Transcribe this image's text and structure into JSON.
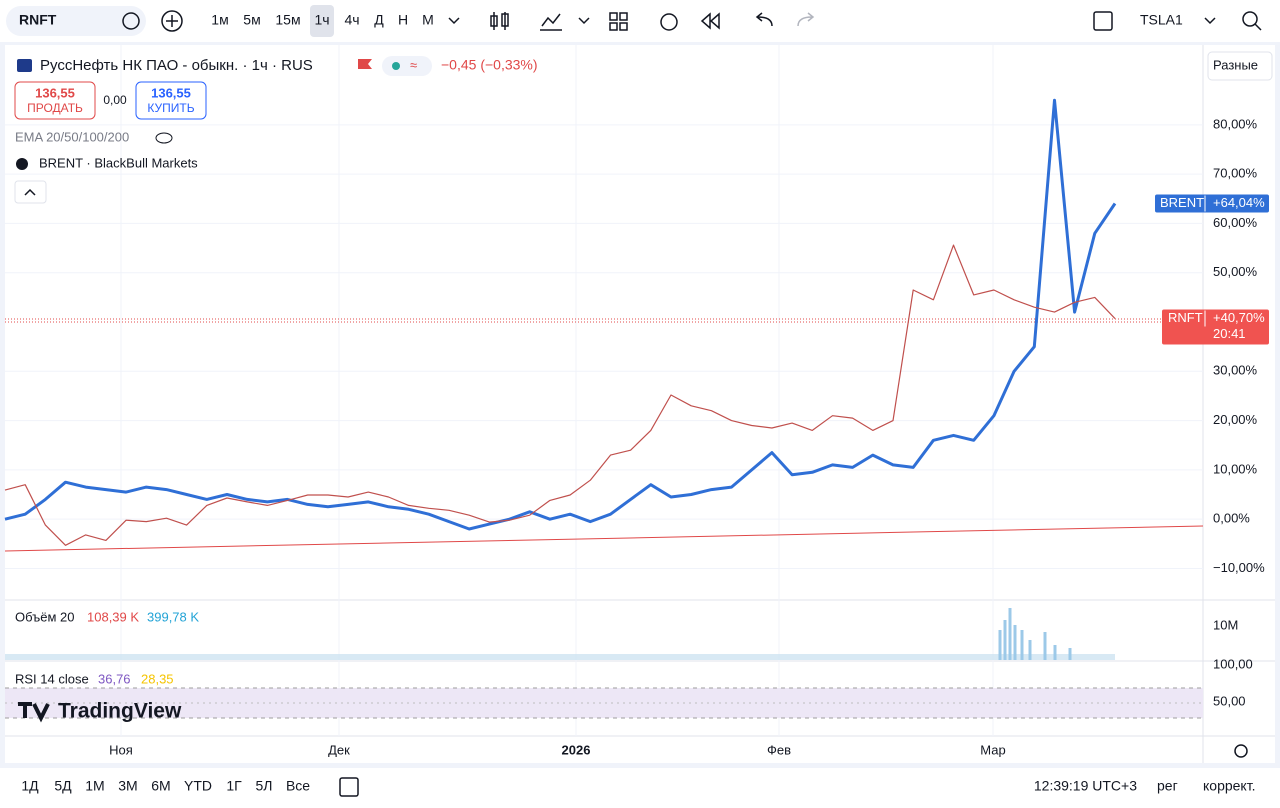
{
  "toolbar": {
    "symbol": "RNFT",
    "intervals": [
      "1м",
      "5м",
      "15м",
      "1ч",
      "4ч",
      "Д",
      "Н",
      "М"
    ],
    "active_interval": "1ч",
    "compare_symbol": "TSLA1"
  },
  "legend": {
    "title": "РуссНефть НК ПАО - обыкн. · 1ч · RUS",
    "change": "−0,45 (−0,33%)",
    "sell_price": "136,55",
    "sell_label": "ПРОДАТЬ",
    "spread": "0,00",
    "buy_price": "136,55",
    "buy_label": "КУПИТЬ",
    "ema": "EMA 20/50/100/200",
    "compare": "BRENT · BlackBull Markets"
  },
  "scale_mode": "Разные",
  "chart_data": {
    "type": "line",
    "series": [
      {
        "name": "BRENT",
        "color": "#2f6fd6",
        "width": 3,
        "last_value_label": "+64,04%",
        "values": [
          0,
          1,
          4,
          7.5,
          6.5,
          6,
          5.5,
          6.5,
          6,
          5,
          4,
          5,
          4,
          3.5,
          4,
          3,
          2.5,
          3,
          3.5,
          2.5,
          2,
          1,
          -0.5,
          -2,
          -1,
          0,
          1.5,
          0,
          1,
          -0.5,
          1,
          4,
          7,
          4.5,
          5,
          6,
          6.5,
          10,
          13.5,
          9,
          9.5,
          11,
          10.5,
          13,
          11,
          10.5,
          16,
          17,
          16,
          21,
          30,
          35,
          85,
          42,
          58,
          64.04
        ]
      },
      {
        "name": "RNFT",
        "color": "#c0504d",
        "width": 1.2,
        "last_value_label": "+40,70%",
        "values": [
          5.9,
          7,
          -1.2,
          -5.3,
          -3.2,
          -4.3,
          -0.2,
          -0.5,
          0.2,
          -1.2,
          2.8,
          4.3,
          3.5,
          2.8,
          3.8,
          4.9,
          4.9,
          4.5,
          5.5,
          4.5,
          2.8,
          2.2,
          1.8,
          0.8,
          -0.6,
          -0.2,
          0.8,
          3.8,
          4.9,
          7.9,
          13,
          14,
          18,
          25.2,
          23,
          22,
          20,
          19,
          18.5,
          19.5,
          18,
          21,
          20.5,
          18,
          20,
          46.5,
          44.5,
          55.6,
          45.5,
          46.5,
          44.5,
          43,
          42,
          44,
          45,
          40.7
        ]
      }
    ],
    "ylim": [
      -16.4,
      96.2
    ],
    "yticks": [
      {
        "value": -10,
        "label": "−10,00%"
      },
      {
        "value": 0,
        "label": "0,00%"
      },
      {
        "value": 10,
        "label": "10,00%"
      },
      {
        "value": 20,
        "label": "20,00%"
      },
      {
        "value": 30,
        "label": "30,00%"
      },
      {
        "value": 50,
        "label": "50,00%"
      },
      {
        "value": 60,
        "label": "60,00%"
      },
      {
        "value": 70,
        "label": "70,00%"
      },
      {
        "value": 80,
        "label": "80,00%"
      }
    ],
    "grid": true
  },
  "countdown": "20:41",
  "volume": {
    "title": "Объём 20",
    "value1": "108,39 K",
    "value2": "399,78 K",
    "tick": "10M"
  },
  "rsi": {
    "title": "RSI 14 close",
    "value1": "36,76",
    "value2": "28,35",
    "tick_top": "100,00",
    "tick_mid": "50,00"
  },
  "logo": "TradingView",
  "time_axis": [
    "Ноя",
    "Дек",
    "2026",
    "Фев",
    "Мар"
  ],
  "ranges": [
    "1Д",
    "5Д",
    "1М",
    "3М",
    "6М",
    "YTD",
    "1Г",
    "5Л",
    "Все"
  ],
  "status": {
    "clock": "12:39:19 UTC+3",
    "session": "рег",
    "adjust": "коррект."
  }
}
